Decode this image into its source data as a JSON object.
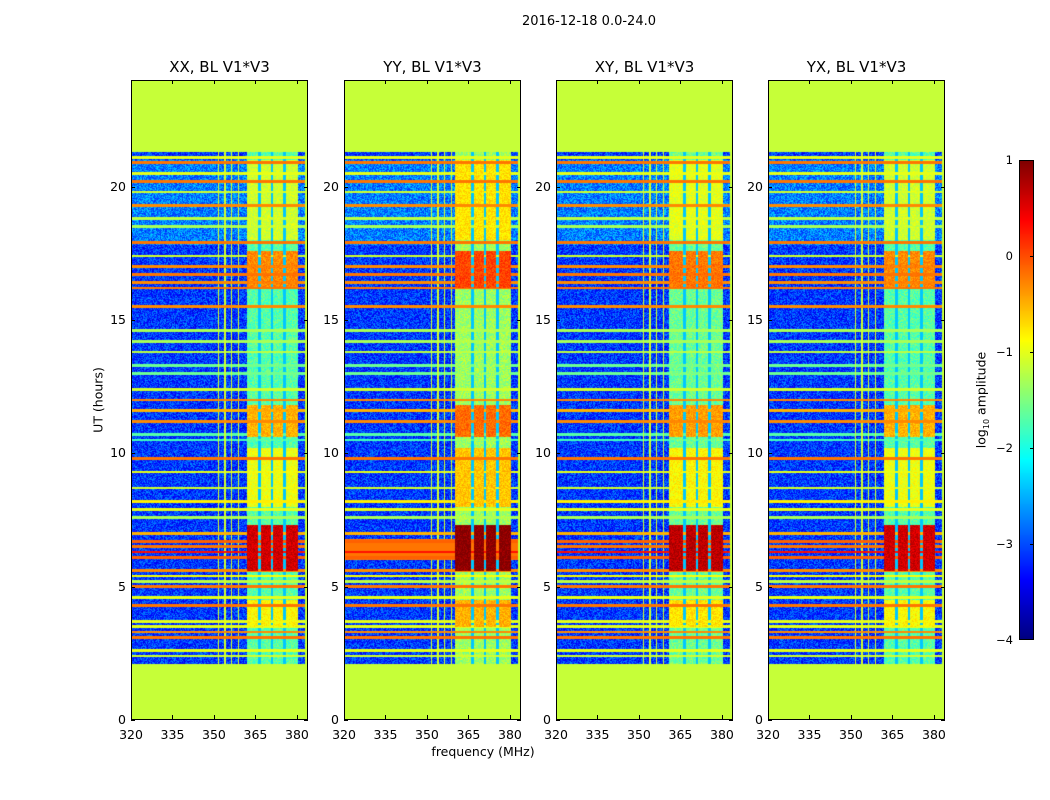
{
  "chart_data": {
    "type": "heatmap",
    "title": "2016-12-18 0.0-24.0",
    "xlabel": "frequency (MHz)",
    "ylabel": "UT (hours)",
    "xlim": [
      320,
      384
    ],
    "ylim": [
      0,
      24
    ],
    "xticks": [
      "320",
      "335",
      "350",
      "365",
      "380"
    ],
    "xtick_values": [
      320,
      335,
      350,
      365,
      380
    ],
    "yticks": [
      "0",
      "5",
      "10",
      "15",
      "20"
    ],
    "ytick_values": [
      0,
      5,
      10,
      15,
      20
    ],
    "panels": [
      {
        "title": "XX, BL V1*V3",
        "band_start": 362,
        "boost": 0.0
      },
      {
        "title": "YY, BL V1*V3",
        "band_start": 360,
        "boost": 0.35
      },
      {
        "title": "XY, BL V1*V3",
        "band_start": 361,
        "boost": 0.1
      },
      {
        "title": "YX, BL V1*V3",
        "band_start": 362,
        "boost": 0.0
      }
    ],
    "masked_time_ranges": [
      [
        0,
        2.1
      ],
      [
        21.3,
        24
      ]
    ],
    "masked_value": -1.15,
    "background_value": -3.1,
    "band_freq_range": [
      361,
      380.5
    ],
    "band_value": -1.7,
    "band_gaps_mhz": [
      366.5,
      371,
      375.5
    ],
    "rfi_channels_mhz": [
      351.5,
      354,
      356.2,
      359
    ],
    "rfi_times_hours": [
      [
        2.4,
        -1.1
      ],
      [
        2.6,
        -1.0
      ],
      [
        3.1,
        -0.2
      ],
      [
        3.3,
        -0.3
      ],
      [
        3.5,
        -1.0
      ],
      [
        3.7,
        -1.0
      ],
      [
        4.3,
        -0.2
      ],
      [
        4.6,
        -1.0
      ],
      [
        5.0,
        -0.2
      ],
      [
        5.2,
        -1.2
      ],
      [
        5.4,
        -0.9
      ],
      [
        5.6,
        -0.3
      ],
      [
        6.1,
        -0.1
      ],
      [
        6.3,
        0.3
      ],
      [
        6.5,
        -0.2
      ],
      [
        6.7,
        -0.1
      ],
      [
        7.0,
        -0.5
      ],
      [
        7.6,
        -1.3
      ],
      [
        7.9,
        -1.0
      ],
      [
        8.2,
        -0.8
      ],
      [
        8.7,
        -1.1
      ],
      [
        9.3,
        -1.0
      ],
      [
        9.8,
        -0.2
      ],
      [
        10.5,
        -1.8
      ],
      [
        10.7,
        -1.7
      ],
      [
        11.2,
        -0.3
      ],
      [
        11.6,
        -0.5
      ],
      [
        12.0,
        -0.3
      ],
      [
        12.4,
        -1.1
      ],
      [
        13.0,
        -1.6
      ],
      [
        13.3,
        -1.6
      ],
      [
        13.8,
        -1.2
      ],
      [
        14.2,
        -1.3
      ],
      [
        14.6,
        -1.3
      ],
      [
        15.5,
        -0.3
      ],
      [
        16.2,
        -0.2
      ],
      [
        16.4,
        -0.3
      ],
      [
        16.7,
        -0.2
      ],
      [
        17.0,
        -0.3
      ],
      [
        17.4,
        -1.1
      ],
      [
        17.9,
        -0.2
      ],
      [
        18.5,
        -1.3
      ],
      [
        18.8,
        -1.2
      ],
      [
        19.3,
        -0.3
      ],
      [
        19.8,
        -1.1
      ],
      [
        20.2,
        -0.2
      ],
      [
        20.5,
        -1.0
      ],
      [
        20.9,
        -0.2
      ],
      [
        21.1,
        -1.0
      ]
    ],
    "high_blocks": [
      {
        "t": [
          5.6,
          7.3
        ],
        "f": [
          362,
          380.5
        ],
        "v": 0.6
      },
      {
        "t": [
          16.2,
          17.6
        ],
        "f": [
          362,
          380.5
        ],
        "v": -0.3
      },
      {
        "t": [
          10.6,
          11.8
        ],
        "f": [
          362,
          380.5
        ],
        "v": -0.5
      },
      {
        "t": [
          8.0,
          10.2
        ],
        "f": [
          362,
          380.5
        ],
        "v": -0.95
      },
      {
        "t": [
          3.5,
          4.5
        ],
        "f": [
          362,
          380.5
        ],
        "v": -0.85
      },
      {
        "t": [
          18.0,
          21.0
        ],
        "f": [
          362,
          380.5
        ],
        "v": -1.1
      }
    ],
    "colormap": "jet",
    "colorbar": {
      "range": [
        -4,
        1
      ],
      "ticks": [
        "1",
        "0",
        "−1",
        "−2",
        "−3",
        "−4"
      ],
      "tick_values": [
        1,
        0,
        -1,
        -2,
        -3,
        -4
      ],
      "label_prefix": "log",
      "label_sub": "10",
      "label_suffix": " amplitude"
    }
  }
}
